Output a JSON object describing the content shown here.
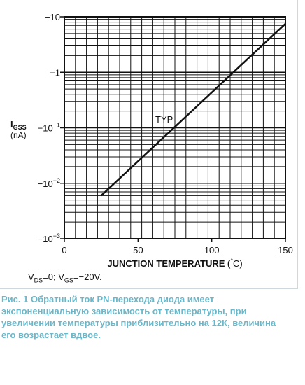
{
  "chart_data": {
    "type": "line",
    "y_scale": "log",
    "x_range": [
      0,
      150
    ],
    "y_range": [
      0.001,
      10
    ],
    "x_ticks": [
      0,
      50,
      100,
      150
    ],
    "y_ticks": [
      {
        "value": 10,
        "label_base": "−10",
        "label_exp": ""
      },
      {
        "value": 1,
        "label_base": "−1",
        "label_exp": ""
      },
      {
        "value": 0.1,
        "label_base": "−10",
        "label_exp": "−1"
      },
      {
        "value": 0.01,
        "label_base": "−10",
        "label_exp": "−2"
      },
      {
        "value": 0.001,
        "label_base": "−10",
        "label_exp": "−3"
      }
    ],
    "xlabel_main": "JUNCTION TEMPERATURE (",
    "xlabel_deg": "°",
    "xlabel_unit": "C)",
    "ylabel_symbol": "I",
    "ylabel_sub": "GSS",
    "ylabel_unit": "(nA)",
    "grid": true,
    "series": [
      {
        "name": "TYP",
        "x": [
          25,
          150
        ],
        "y": [
          0.006,
          7.5
        ]
      }
    ],
    "annotation": "TYP",
    "condition_note": {
      "p1": "V",
      "s1": "DS",
      "p2": "=0; V",
      "s2": "GS",
      "p3": "=−20V."
    }
  },
  "caption": {
    "lines": [
      "Рис. 1 Обратный ток PN-перехода диода имеет",
      " экспоненциальную зависимость от температуры, при",
      "увеличении температуры приблизительно на 12К, величина",
      "его возрастает вдвое."
    ]
  }
}
